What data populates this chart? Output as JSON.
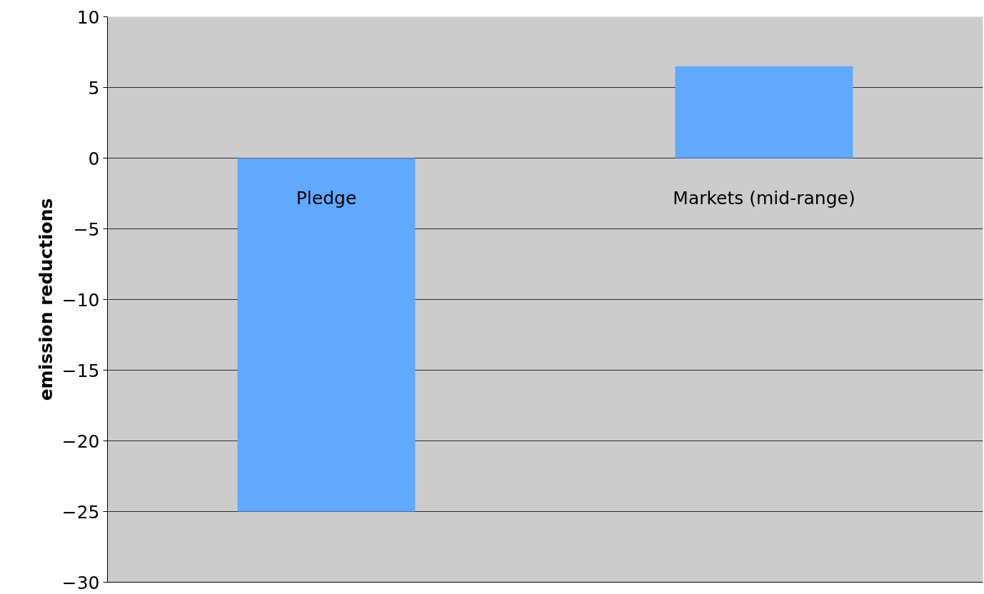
{
  "chart_data": {
    "type": "bar",
    "ylabel": "emission reductions",
    "categories": [
      "Pledge",
      "Markets (mid-range)"
    ],
    "values": [
      -25,
      6.5
    ],
    "color": "#61a8ff",
    "ylim": [
      -30,
      10
    ],
    "yticks": [
      -30,
      -25,
      -20,
      -15,
      -10,
      -5,
      0,
      5,
      10
    ],
    "grid": "y"
  }
}
